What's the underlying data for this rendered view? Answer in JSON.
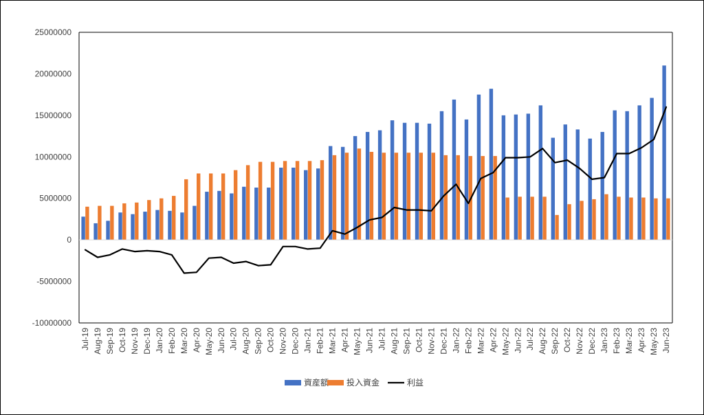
{
  "chart_data": {
    "type": "bar",
    "title": "",
    "xlabel": "",
    "ylabel": "",
    "ylim": [
      -10000000,
      25000000
    ],
    "y_ticks": [
      25000000,
      20000000,
      15000000,
      10000000,
      5000000,
      0,
      -5000000,
      -10000000
    ],
    "y_tick_labels": [
      "25000000",
      "20000000",
      "15000000",
      "10000000",
      "5000000",
      "0",
      "-5000000",
      "-10000000"
    ],
    "grid": false,
    "legend_position": "bottom",
    "categories": [
      "Jul-19",
      "Aug-19",
      "Sep-19",
      "Oct-19",
      "Nov-19",
      "Dec-19",
      "Jan-20",
      "Feb-20",
      "Mar-20",
      "Apr-20",
      "May-20",
      "Jun-20",
      "Jul-20",
      "Aug-20",
      "Sep-20",
      "Oct-20",
      "Nov-20",
      "Dec-20",
      "Jan-21",
      "Feb-21",
      "Mar-21",
      "Apr-21",
      "May-21",
      "Jun-21",
      "Jul-21",
      "Aug-21",
      "Sep-21",
      "Oct-21",
      "Nov-21",
      "Dec-21",
      "Jan-22",
      "Feb-22",
      "Mar-22",
      "Apr-22",
      "May-22",
      "Jun-22",
      "Jul-22",
      "Aug-22",
      "Sep-22",
      "Oct-22",
      "Nov-22",
      "Dec-22",
      "Jan-23",
      "Feb-23",
      "Mar-23",
      "Apr-23",
      "May-23",
      "Jun-23"
    ],
    "series": [
      {
        "name": "資産額",
        "type": "bar",
        "color": "#4472C4",
        "values": [
          2800000,
          2000000,
          2300000,
          3300000,
          3100000,
          3400000,
          3600000,
          3500000,
          3300000,
          4100000,
          5800000,
          5900000,
          5600000,
          6400000,
          6300000,
          6300000,
          8700000,
          8700000,
          8400000,
          8600000,
          11300000,
          11200000,
          12500000,
          13000000,
          13200000,
          14400000,
          14100000,
          14100000,
          14000000,
          15500000,
          16900000,
          14500000,
          17500000,
          18200000,
          15000000,
          15100000,
          15200000,
          16200000,
          12300000,
          13900000,
          13300000,
          12200000,
          13000000,
          15600000,
          15500000,
          16200000,
          17100000,
          21000000
        ]
      },
      {
        "name": "投入資金",
        "type": "bar",
        "color": "#ED7D31",
        "values": [
          4000000,
          4100000,
          4100000,
          4400000,
          4500000,
          4800000,
          5000000,
          5300000,
          7300000,
          8000000,
          8000000,
          8000000,
          8400000,
          9000000,
          9400000,
          9400000,
          9500000,
          9500000,
          9500000,
          9600000,
          10200000,
          10500000,
          11000000,
          10600000,
          10500000,
          10500000,
          10500000,
          10500000,
          10500000,
          10200000,
          10200000,
          10100000,
          10100000,
          10100000,
          5100000,
          5200000,
          5200000,
          5200000,
          3000000,
          4300000,
          4700000,
          4900000,
          5500000,
          5200000,
          5100000,
          5100000,
          5000000,
          5000000
        ]
      },
      {
        "name": "利益",
        "type": "line",
        "color": "#000000",
        "values": [
          -1200000,
          -2100000,
          -1800000,
          -1100000,
          -1400000,
          -1300000,
          -1400000,
          -1800000,
          -4000000,
          -3900000,
          -2200000,
          -2100000,
          -2800000,
          -2600000,
          -3100000,
          -3000000,
          -800000,
          -800000,
          -1100000,
          -1000000,
          1100000,
          700000,
          1500000,
          2400000,
          2700000,
          3900000,
          3600000,
          3600000,
          3500000,
          5300000,
          6700000,
          4400000,
          7400000,
          8100000,
          9900000,
          9900000,
          10000000,
          11000000,
          9300000,
          9600000,
          8600000,
          7300000,
          7500000,
          10400000,
          10400000,
          11100000,
          12100000,
          16000000
        ]
      }
    ]
  }
}
